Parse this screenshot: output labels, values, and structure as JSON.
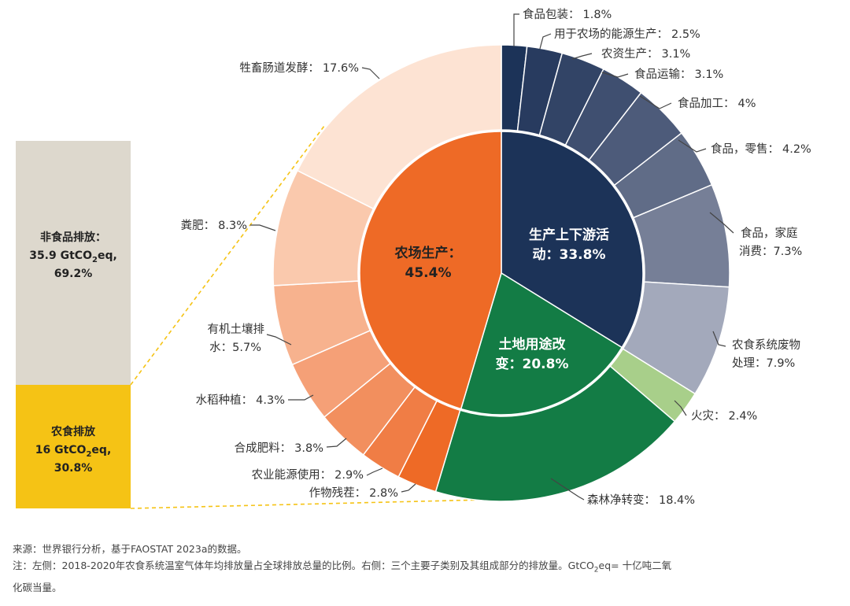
{
  "chart_data": {
    "type": "pie",
    "inner_ring": [
      {
        "label": "农场生产：",
        "value": 45.4,
        "value_text": "45.4%",
        "color": "#ee6a26"
      },
      {
        "label": "生产上下游活动：",
        "value": 33.8,
        "value_text": "33.8%",
        "color": "#1c3358"
      },
      {
        "label": "土地用途改变：",
        "value": 20.8,
        "value_text": "20.8%",
        "color": "#137c45"
      }
    ],
    "outer_ring": [
      {
        "label": "食品包装：",
        "value": 1.8,
        "value_text": "1.8%",
        "color": "#1c3358"
      },
      {
        "label": "用于农场的能源生产：",
        "value": 2.5,
        "value_text": "2.5%",
        "color": "#283b5f"
      },
      {
        "label": "农资生产：",
        "value": 3.1,
        "value_text": "3.1%",
        "color": "#324466"
      },
      {
        "label": "食品运输：",
        "value": 3.1,
        "value_text": "3.1%",
        "color": "#3f4f70"
      },
      {
        "label": "食品加工：",
        "value": 4,
        "value_text": "4%",
        "color": "#4d5b7a"
      },
      {
        "label": "食品，零售：",
        "value": 4.2,
        "value_text": "4.2%",
        "color": "#606c87"
      },
      {
        "label": "食品，家庭消费：",
        "value": 7.3,
        "value_text": "7.3%",
        "color": "#767f97"
      },
      {
        "label": "农食系统废物处理：",
        "value": 7.9,
        "value_text": "7.9%",
        "color": "#a3a9bb"
      },
      {
        "label": "火灾：",
        "value": 2.4,
        "value_text": "2.4%",
        "color": "#a8cf8a"
      },
      {
        "label": "森林净转变：",
        "value": 18.4,
        "value_text": "18.4%",
        "color": "#137c45"
      },
      {
        "label": "作物残茬：",
        "value": 2.8,
        "value_text": "2.8%",
        "color": "#ee6a26"
      },
      {
        "label": "农业能源使用：",
        "value": 2.9,
        "value_text": "2.9%",
        "color": "#f07d45"
      },
      {
        "label": "合成肥料：",
        "value": 3.8,
        "value_text": "3.8%",
        "color": "#f28f5e"
      },
      {
        "label": "水稻种植：",
        "value": 4.3,
        "value_text": "4.3%",
        "color": "#f5a077"
      },
      {
        "label": "有机土壤排水：",
        "value": 5.7,
        "value_text": "5.7%",
        "color": "#f7b28e"
      },
      {
        "label": "粪肥：",
        "value": 8.3,
        "value_text": "8.3%",
        "color": "#fac9ad"
      },
      {
        "label": "牲畜肠道发酵：",
        "value": 17.6,
        "value_text": "17.6%",
        "color": "#fde3d3"
      }
    ],
    "stacked_bar": [
      {
        "label": "非食品排放：",
        "amount_prefix": "35.9 GtCO",
        "amount_sub": "2",
        "amount_suffix": "eq,",
        "share": "69.2%",
        "value": 69.2,
        "color": "#ddd8cd"
      },
      {
        "label": "农食排放",
        "amount_prefix": "16 GtCO",
        "amount_sub": "2",
        "amount_suffix": "eq,",
        "share": "30.8%",
        "value": 30.8,
        "color": "#f5c315"
      }
    ]
  },
  "notes": {
    "source": "来源：世界银行分析，基于FAOSTAT 2023a的数据。",
    "note_part1": "注：左侧：2018-2020年农食系统温室气体年均排放量占全球排放总量的比例。右侧：三个主要子类别及其组成部分的排放量。GtCO",
    "note_sub": "2",
    "note_part2": "eq= 十亿吨二氧",
    "note_line2": "化碳当量。"
  },
  "colors": {
    "connector": "#f5c315",
    "leader": "#444444"
  }
}
